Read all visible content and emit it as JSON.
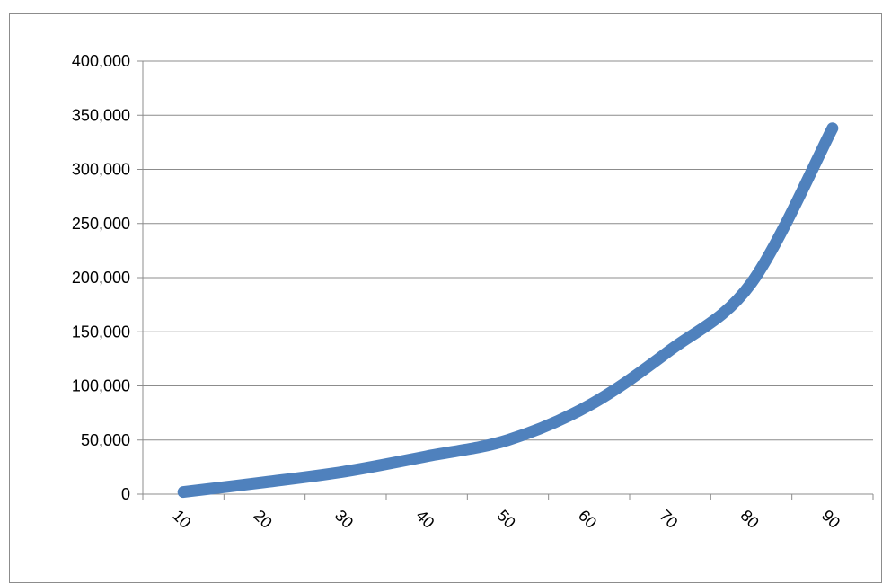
{
  "chart_data": {
    "type": "line",
    "title": "",
    "xlabel": "",
    "ylabel": "",
    "x": [
      10,
      20,
      30,
      40,
      50,
      60,
      70,
      80,
      90
    ],
    "x_tick_labels": [
      "10",
      "20",
      "30",
      "40",
      "50",
      "60",
      "70",
      "80",
      "90"
    ],
    "y_tick_labels": [
      "0",
      "50,000",
      "100,000",
      "150,000",
      "200,000",
      "250,000",
      "300,000",
      "350,000",
      "400,000"
    ],
    "y_ticks": [
      0,
      50000,
      100000,
      150000,
      200000,
      250000,
      300000,
      350000,
      400000
    ],
    "ylim": [
      0,
      400000
    ],
    "grid": true,
    "legend": "none",
    "series": [
      {
        "color": "#4f81bd",
        "values": [
          2000,
          11000,
          21000,
          35000,
          50000,
          82000,
          133000,
          195000,
          338000
        ]
      }
    ]
  }
}
